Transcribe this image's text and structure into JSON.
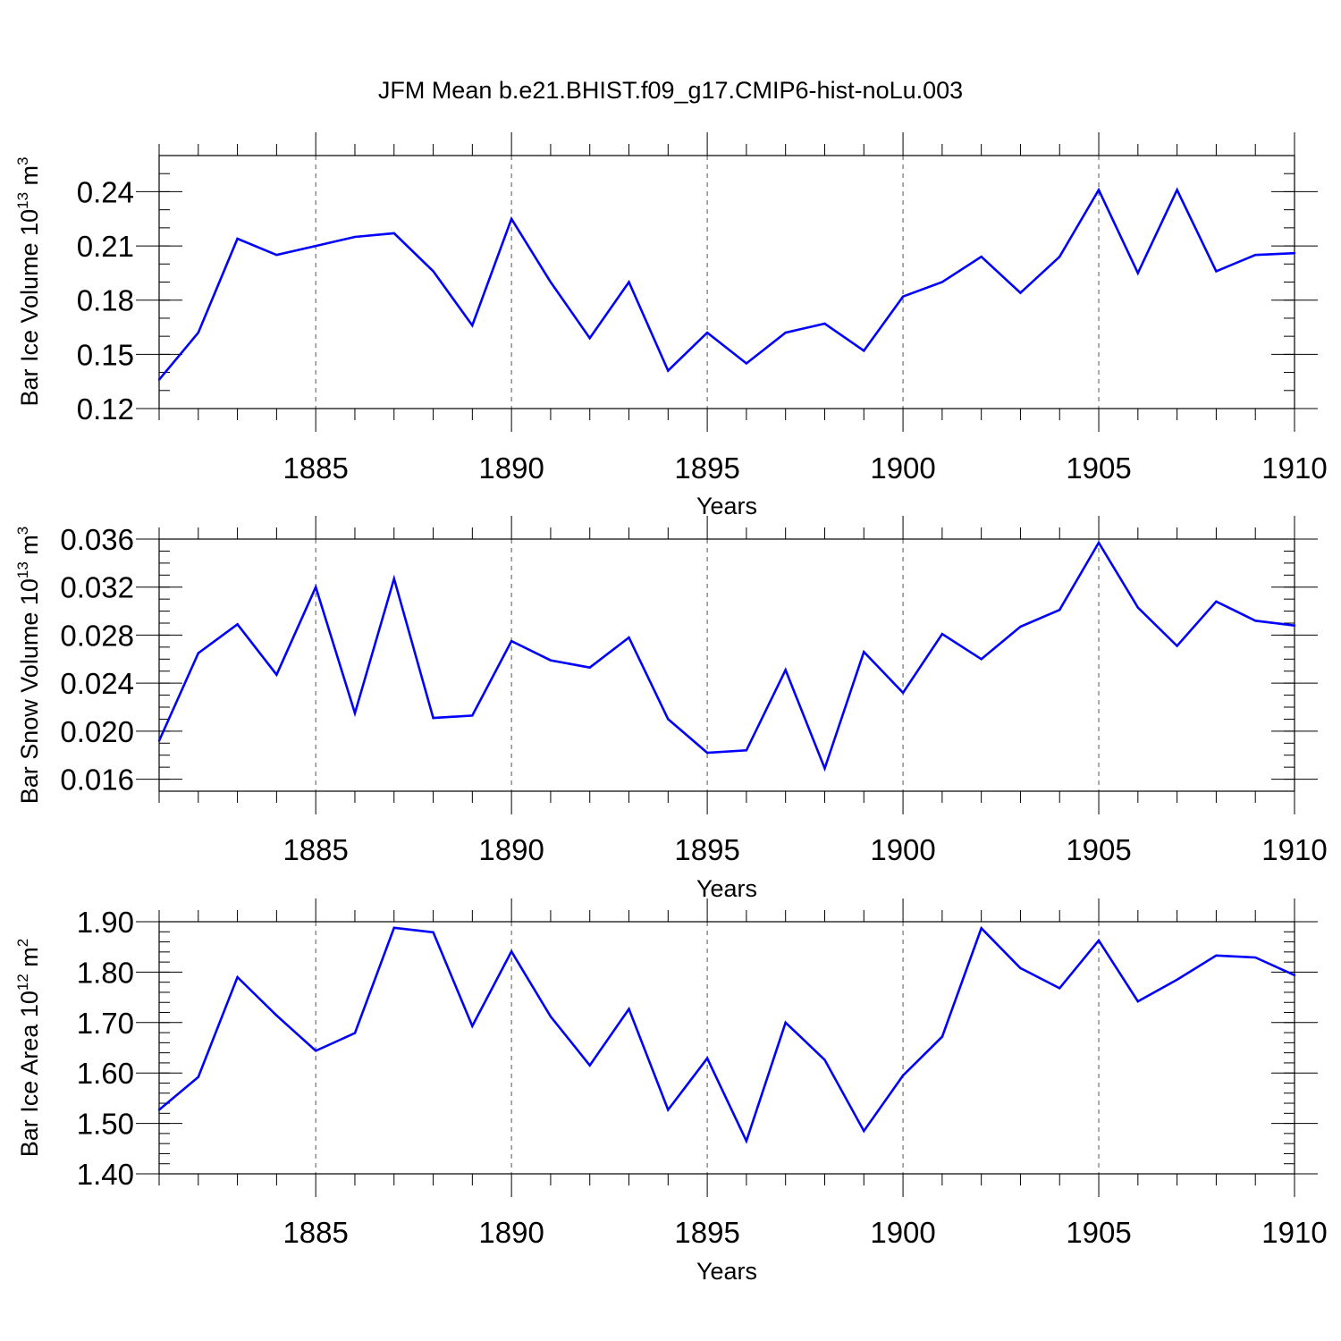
{
  "title": "JFM Mean b.e21.BHIST.f09_g17.CMIP6-hist-noLu.003",
  "line_color": "#0000ff",
  "chart_data": [
    {
      "type": "line",
      "xlabel": "Years",
      "ylabel_parts": [
        "Bar Ice Volume 10",
        "13",
        " m",
        "3"
      ],
      "xlim": [
        1881,
        1910
      ],
      "ylim": [
        0.12,
        0.26
      ],
      "xticks": [
        1885,
        1890,
        1895,
        1900,
        1905,
        1910
      ],
      "yticks": [
        0.12,
        0.15,
        0.18,
        0.21,
        0.24
      ],
      "ytick_labels": [
        "0.12",
        "0.15",
        "0.18",
        "0.21",
        "0.24"
      ],
      "y_minor_step": 0.01,
      "x": [
        1881,
        1882,
        1883,
        1884,
        1885,
        1886,
        1887,
        1888,
        1889,
        1890,
        1891,
        1892,
        1893,
        1894,
        1895,
        1896,
        1897,
        1898,
        1899,
        1900,
        1901,
        1902,
        1903,
        1904,
        1905,
        1906,
        1907,
        1908,
        1909,
        1910
      ],
      "series": [
        {
          "values": [
            0.136,
            0.162,
            0.214,
            0.205,
            0.21,
            0.215,
            0.217,
            0.196,
            0.166,
            0.225,
            0.19,
            0.159,
            0.19,
            0.141,
            0.162,
            0.145,
            0.162,
            0.167,
            0.152,
            0.182,
            0.19,
            0.204,
            0.184,
            0.204,
            0.241,
            0.195,
            0.241,
            0.196,
            0.205,
            0.206
          ]
        }
      ]
    },
    {
      "type": "line",
      "xlabel": "Years",
      "ylabel_parts": [
        "Bar Snow Volume 10",
        "13",
        " m",
        "3"
      ],
      "xlim": [
        1881,
        1910
      ],
      "ylim": [
        0.015,
        0.036
      ],
      "xticks": [
        1885,
        1890,
        1895,
        1900,
        1905,
        1910
      ],
      "yticks": [
        0.016,
        0.02,
        0.024,
        0.028,
        0.032,
        0.036
      ],
      "ytick_labels": [
        "0.016",
        "0.020",
        "0.024",
        "0.028",
        "0.032",
        "0.036"
      ],
      "y_minor_step": 0.001,
      "x": [
        1881,
        1882,
        1883,
        1884,
        1885,
        1886,
        1887,
        1888,
        1889,
        1890,
        1891,
        1892,
        1893,
        1894,
        1895,
        1896,
        1897,
        1898,
        1899,
        1900,
        1901,
        1902,
        1903,
        1904,
        1905,
        1906,
        1907,
        1908,
        1909,
        1910
      ],
      "series": [
        {
          "values": [
            0.0192,
            0.0265,
            0.0289,
            0.0247,
            0.032,
            0.0215,
            0.0327,
            0.0211,
            0.0213,
            0.0275,
            0.0259,
            0.0253,
            0.0278,
            0.021,
            0.0182,
            0.0184,
            0.0251,
            0.0169,
            0.0266,
            0.0232,
            0.0281,
            0.026,
            0.0287,
            0.0301,
            0.0357,
            0.0303,
            0.0271,
            0.0308,
            0.0292,
            0.0288
          ]
        }
      ]
    },
    {
      "type": "line",
      "xlabel": "Years",
      "ylabel_parts": [
        "Bar Ice Area 10",
        "12",
        " m",
        "2"
      ],
      "xlim": [
        1881,
        1910
      ],
      "ylim": [
        1.4,
        1.9
      ],
      "xticks": [
        1885,
        1890,
        1895,
        1900,
        1905,
        1910
      ],
      "yticks": [
        1.4,
        1.5,
        1.6,
        1.7,
        1.8,
        1.9
      ],
      "ytick_labels": [
        "1.40",
        "1.50",
        "1.60",
        "1.70",
        "1.80",
        "1.90"
      ],
      "y_minor_step": 0.02,
      "x": [
        1881,
        1882,
        1883,
        1884,
        1885,
        1886,
        1887,
        1888,
        1889,
        1890,
        1891,
        1892,
        1893,
        1894,
        1895,
        1896,
        1897,
        1898,
        1899,
        1900,
        1901,
        1902,
        1903,
        1904,
        1905,
        1906,
        1907,
        1908,
        1909,
        1910
      ],
      "series": [
        {
          "values": [
            1.527,
            1.592,
            1.79,
            1.714,
            1.644,
            1.679,
            1.888,
            1.879,
            1.693,
            1.841,
            1.712,
            1.615,
            1.727,
            1.527,
            1.629,
            1.465,
            1.7,
            1.626,
            1.485,
            1.595,
            1.672,
            1.887,
            1.808,
            1.768,
            1.863,
            1.742,
            1.785,
            1.833,
            1.829,
            1.794
          ]
        }
      ]
    }
  ]
}
